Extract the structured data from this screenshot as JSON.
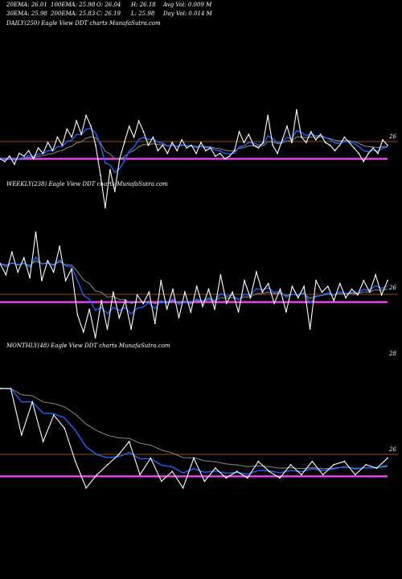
{
  "header": {
    "row1": [
      "20EMA: 26.01",
      "100EMA: 25.98",
      "O: 26.04",
      "H: 26.18",
      "Avg Vol: 0.009 M"
    ],
    "row2": [
      "30EMA: 25.98",
      "200EMA: 25.83",
      "C: 26.19",
      "L: 25.98",
      "Day Vol: 0.014  M"
    ]
  },
  "colors": {
    "background": "#000000",
    "price": "#ffffff",
    "ema_short": "#1e63ff",
    "ema_mid": "#8a8a8a",
    "ema_long": "#ff44ff",
    "ref_line": "#c86414"
  },
  "chart_data": [
    {
      "type": "line",
      "panel_label": "DAILY(250) Eagle   View  DDT charts MunafaSutra.com",
      "ytick": "26",
      "series": [
        {
          "values": [
            26.0,
            25.9,
            26.1,
            25.8,
            26.2,
            26.1,
            26.3,
            26.0,
            26.4,
            26.2,
            26.6,
            26.3,
            26.8,
            26.5,
            27.1,
            26.8,
            27.4,
            26.9,
            27.6,
            27.2,
            26.5,
            25.4,
            24.2,
            25.6,
            24.8,
            26.0,
            26.6,
            27.2,
            26.8,
            27.4,
            27.0,
            26.5,
            26.8,
            26.3,
            26.5,
            26.2,
            26.6,
            26.3,
            26.7,
            26.4,
            26.5,
            26.2,
            26.6,
            26.3,
            26.4,
            26.1,
            26.2,
            26.0,
            26.1,
            26.3,
            27.0,
            26.6,
            26.9,
            26.5,
            26.4,
            26.6,
            27.6,
            26.5,
            26.2,
            26.7,
            27.2,
            26.6,
            27.8,
            26.8,
            26.6,
            27.0,
            26.7,
            26.9,
            26.6,
            26.5,
            26.3,
            26.5,
            26.8,
            26.6,
            26.4,
            26.2,
            25.9,
            26.2,
            26.4,
            26.2,
            26.7,
            26.5
          ]
        }
      ]
    },
    {
      "type": "line",
      "panel_label": "WEEKLY(238) Eagle   View  DDT charts MunafaSutra.com",
      "ytick": "26",
      "series": [
        {
          "values": [
            27.2,
            26.8,
            27.6,
            26.9,
            27.4,
            26.7,
            28.3,
            26.6,
            27.3,
            26.9,
            27.8,
            26.6,
            27.0,
            25.4,
            24.8,
            25.6,
            24.6,
            25.9,
            24.9,
            26.2,
            25.3,
            25.9,
            24.9,
            26.1,
            25.8,
            26.2,
            25.1,
            26.6,
            25.6,
            26.3,
            25.3,
            26.2,
            25.5,
            26.4,
            25.7,
            26.3,
            25.6,
            26.8,
            25.8,
            26.2,
            25.5,
            26.6,
            26.0,
            26.9,
            26.2,
            26.5,
            25.8,
            26.3,
            25.5,
            26.4,
            26.0,
            26.4,
            24.9,
            26.6,
            26.2,
            26.4,
            25.9,
            26.5,
            26.0,
            26.3,
            26.1,
            26.6,
            26.2,
            26.8,
            26.1,
            26.6
          ]
        }
      ]
    },
    {
      "type": "line",
      "panel_label": "MONTHLY(48) Eagle   View  DDT charts MunafaSutra.com",
      "ytick_top": "28",
      "ytick": "26",
      "series": [
        {
          "values": [
            28.4,
            28.4,
            27.0,
            28.0,
            26.8,
            27.6,
            27.2,
            26.2,
            25.4,
            25.8,
            26.1,
            26.4,
            26.8,
            25.8,
            26.3,
            25.6,
            25.9,
            25.4,
            26.3,
            25.6,
            26.0,
            25.7,
            25.9,
            25.7,
            26.2,
            25.9,
            25.7,
            26.1,
            25.8,
            26.2,
            25.8,
            26.1,
            26.2,
            25.8,
            26.1,
            26.0,
            26.3
          ]
        }
      ]
    }
  ]
}
